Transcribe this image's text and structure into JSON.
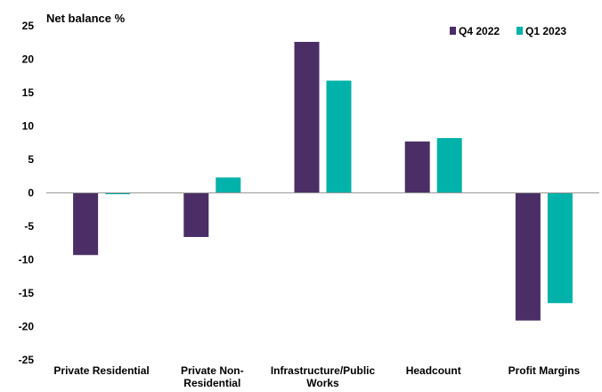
{
  "chart_data": {
    "type": "bar",
    "ylabel": "Net balance %",
    "ylim": [
      -25,
      25
    ],
    "yticks": [
      25,
      20,
      15,
      10,
      5,
      0,
      -5,
      -10,
      -15,
      -20,
      -25
    ],
    "categories": [
      [
        "Private Residential"
      ],
      [
        "Private Non-",
        "Residential"
      ],
      [
        "Infrastructure/Public",
        "Works"
      ],
      [
        "Headcount"
      ],
      [
        "Profit Margins"
      ]
    ],
    "series": [
      {
        "name": "Q4 2022",
        "color": "#4b2e66",
        "values": [
          -9.3,
          -6.6,
          22.6,
          7.7,
          -19.1
        ]
      },
      {
        "name": "Q1 2023",
        "color": "#00b2a9",
        "values": [
          -0.2,
          2.3,
          16.8,
          8.2,
          -16.5
        ]
      }
    ],
    "legend_position": "top-right",
    "grid": false
  }
}
